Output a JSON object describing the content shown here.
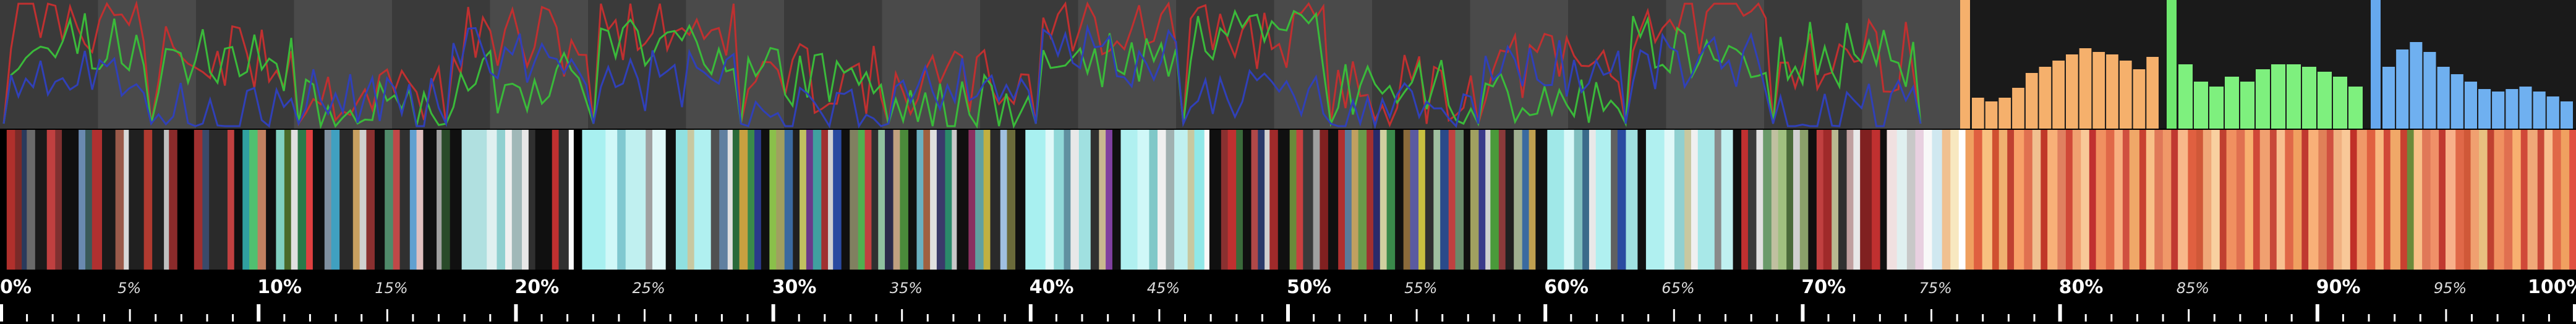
{
  "colors": {
    "band_dark": "#3a3a3a",
    "band_light": "#4a4a4a",
    "hist_bg": "#1a1a1a",
    "red": "#c03030",
    "green": "#3aba3a",
    "blue": "#3040b8",
    "hist_orange": "#f5b06c",
    "hist_green": "#7ef07e",
    "hist_blue": "#6fb0f0",
    "orange_bar": "#f5b06c",
    "green_bar": "#6fe86f",
    "blue_bar": "#66a8ee",
    "ruler_tick": "#ffffff"
  },
  "histograms": {
    "orange": [
      0.25,
      0.22,
      0.25,
      0.33,
      0.45,
      0.5,
      0.55,
      0.6,
      0.65,
      0.62,
      0.6,
      0.55,
      0.48,
      0.58
    ],
    "green": [
      0.52,
      0.38,
      0.34,
      0.42,
      0.38,
      0.48,
      0.52,
      0.52,
      0.5,
      0.46,
      0.42,
      0.34
    ],
    "blue": [
      0.5,
      0.64,
      0.7,
      0.62,
      0.5,
      0.44,
      0.38,
      0.32,
      0.3,
      0.32,
      0.34,
      0.3,
      0.26,
      0.22
    ]
  },
  "ruler": {
    "major": [
      "0%",
      "10%",
      "20%",
      "30%",
      "40%",
      "50%",
      "60%",
      "70%",
      "80%",
      "90%",
      "100%"
    ],
    "minor": [
      "5%",
      "15%",
      "25%",
      "35%",
      "45%",
      "55%",
      "65%",
      "75%",
      "85%",
      "95%"
    ]
  },
  "strip_segments": [
    {
      "color": "#000000",
      "w": 8
    },
    {
      "color": "#b0302c",
      "w": 10
    },
    {
      "color": "#7a2a28",
      "w": 8
    },
    {
      "color": "#2a3a5c",
      "w": 6
    },
    {
      "color": "#6a6a6a",
      "w": 10
    },
    {
      "color": "#1a1a1a",
      "w": 14
    },
    {
      "color": "#c04040",
      "w": 10
    },
    {
      "color": "#803030",
      "w": 8
    },
    {
      "color": "#101010",
      "w": 20
    },
    {
      "color": "#6a8ab0",
      "w": 8
    },
    {
      "color": "#3a5a5a",
      "w": 8
    },
    {
      "color": "#b03030",
      "w": 12
    },
    {
      "color": "#1a1a1a",
      "w": 16
    },
    {
      "color": "#9a5a4a",
      "w": 10
    },
    {
      "color": "#d8d8d8",
      "w": 6
    },
    {
      "color": "#202020",
      "w": 18
    },
    {
      "color": "#b03a30",
      "w": 10
    },
    {
      "color": "#202020",
      "w": 14
    },
    {
      "color": "#c0c0c0",
      "w": 6
    },
    {
      "color": "#8a2a2a",
      "w": 10
    },
    {
      "color": "#000000",
      "w": 20
    },
    {
      "color": "#a03030",
      "w": 10
    },
    {
      "color": "#3a4a6a",
      "w": 8
    },
    {
      "color": "#2a2a2a",
      "w": 22
    },
    {
      "color": "#c04040",
      "w": 8
    },
    {
      "color": "#101010",
      "w": 10
    },
    {
      "color": "#30a0a0",
      "w": 8
    },
    {
      "color": "#50c070",
      "w": 10
    },
    {
      "color": "#c08060",
      "w": 10
    },
    {
      "color": "#101010",
      "w": 12
    },
    {
      "color": "#80d0c0",
      "w": 10
    },
    {
      "color": "#4a6a2a",
      "w": 8
    },
    {
      "color": "#e0e0e0",
      "w": 8
    },
    {
      "color": "#2a7a4a",
      "w": 10
    },
    {
      "color": "#e04040",
      "w": 8
    },
    {
      "color": "#101010",
      "w": 14
    },
    {
      "color": "#8090a0",
      "w": 8
    },
    {
      "color": "#40a0c0",
      "w": 10
    },
    {
      "color": "#2a2a2a",
      "w": 16
    },
    {
      "color": "#c8a060",
      "w": 8
    },
    {
      "color": "#d0d0d0",
      "w": 8
    },
    {
      "color": "#8a3030",
      "w": 10
    },
    {
      "color": "#101010",
      "w": 12
    },
    {
      "color": "#508a6a",
      "w": 10
    },
    {
      "color": "#c04848",
      "w": 8
    },
    {
      "color": "#303030",
      "w": 12
    },
    {
      "color": "#60a0d0",
      "w": 8
    },
    {
      "color": "#e0c0c0",
      "w": 8
    },
    {
      "color": "#101010",
      "w": 16
    },
    {
      "color": "#a0a0a0",
      "w": 6
    },
    {
      "color": "#2a4a2a",
      "w": 10
    },
    {
      "color": "#101010",
      "w": 14
    },
    {
      "color": "#b0e0e0",
      "w": 30
    },
    {
      "color": "#e0f0f0",
      "w": 12
    },
    {
      "color": "#90d0d0",
      "w": 10
    },
    {
      "color": "#f0f0f0",
      "w": 8
    },
    {
      "color": "#a0b8b8",
      "w": 12
    },
    {
      "color": "#e8e8e8",
      "w": 8
    },
    {
      "color": "#303030",
      "w": 8
    },
    {
      "color": "#101010",
      "w": 20
    },
    {
      "color": "#c03030",
      "w": 8
    },
    {
      "color": "#303030",
      "w": 12
    },
    {
      "color": "#fafafa",
      "w": 6
    },
    {
      "color": "#000000",
      "w": 10
    },
    {
      "color": "#a8f0f0",
      "w": 28
    },
    {
      "color": "#d0f8f8",
      "w": 14
    },
    {
      "color": "#80c8d0",
      "w": 10
    },
    {
      "color": "#c0f0f0",
      "w": 24
    },
    {
      "color": "#a0a0a0",
      "w": 8
    },
    {
      "color": "#e0f8f8",
      "w": 16
    },
    {
      "color": "#101010",
      "w": 12
    },
    {
      "color": "#90e0e0",
      "w": 14
    },
    {
      "color": "#c8c8a0",
      "w": 8
    },
    {
      "color": "#b0f0f0",
      "w": 20
    },
    {
      "color": "#505050",
      "w": 10
    },
    {
      "color": "#6080a0",
      "w": 10
    },
    {
      "color": "#e0e0e0",
      "w": 6
    },
    {
      "color": "#2a6a3a",
      "w": 8
    },
    {
      "color": "#c8a040",
      "w": 10
    },
    {
      "color": "#3a8a4a",
      "w": 8
    },
    {
      "color": "#2a3a8a",
      "w": 8
    },
    {
      "color": "#101010",
      "w": 10
    },
    {
      "color": "#8ac04a",
      "w": 8
    },
    {
      "color": "#a0a060",
      "w": 10
    },
    {
      "color": "#3a6aa0",
      "w": 10
    },
    {
      "color": "#202020",
      "w": 8
    },
    {
      "color": "#c0c060",
      "w": 8
    },
    {
      "color": "#6a3a8a",
      "w": 8
    },
    {
      "color": "#40a0a0",
      "w": 10
    },
    {
      "color": "#a03030",
      "w": 8
    },
    {
      "color": "#d0d0d0",
      "w": 6
    },
    {
      "color": "#2a4aa0",
      "w": 10
    },
    {
      "color": "#101010",
      "w": 10
    },
    {
      "color": "#808060",
      "w": 10
    },
    {
      "color": "#50b050",
      "w": 8
    },
    {
      "color": "#c04040",
      "w": 8
    },
    {
      "color": "#303030",
      "w": 8
    },
    {
      "color": "#90c0a0",
      "w": 8
    },
    {
      "color": "#2a2a4a",
      "w": 10
    },
    {
      "color": "#c0a080",
      "w": 8
    },
    {
      "color": "#4a8a3a",
      "w": 10
    },
    {
      "color": "#101010",
      "w": 10
    },
    {
      "color": "#6ab0c0",
      "w": 8
    },
    {
      "color": "#a06040",
      "w": 8
    },
    {
      "color": "#e0e0e0",
      "w": 8
    },
    {
      "color": "#3a3a6a",
      "w": 10
    },
    {
      "color": "#2a8a6a",
      "w": 8
    },
    {
      "color": "#c8c8c8",
      "w": 6
    },
    {
      "color": "#101010",
      "w": 14
    },
    {
      "color": "#8a3060",
      "w": 8
    },
    {
      "color": "#60a0a0",
      "w": 10
    },
    {
      "color": "#c0b040",
      "w": 8
    },
    {
      "color": "#2a2a2a",
      "w": 12
    },
    {
      "color": "#a0c0e0",
      "w": 8
    },
    {
      "color": "#6a6a3a",
      "w": 10
    },
    {
      "color": "#101010",
      "w": 12
    },
    {
      "color": "#a8f0f0",
      "w": 24
    },
    {
      "color": "#e0f8f8",
      "w": 10
    },
    {
      "color": "#90d8d8",
      "w": 12
    },
    {
      "color": "#6090a0",
      "w": 8
    },
    {
      "color": "#e8e8e8",
      "w": 10
    },
    {
      "color": "#a0e0e0",
      "w": 14
    },
    {
      "color": "#303030",
      "w": 10
    },
    {
      "color": "#c8b890",
      "w": 8
    },
    {
      "color": "#8040a0",
      "w": 8
    },
    {
      "color": "#101010",
      "w": 10
    },
    {
      "color": "#b0f0f0",
      "w": 20
    },
    {
      "color": "#d0f8f8",
      "w": 14
    },
    {
      "color": "#80c8c8",
      "w": 10
    },
    {
      "color": "#f0f0f0",
      "w": 10
    },
    {
      "color": "#a0b0b0",
      "w": 10
    },
    {
      "color": "#c0f0f0",
      "w": 16
    },
    {
      "color": "#c8c8a0",
      "w": 8
    },
    {
      "color": "#90e8e8",
      "w": 12
    },
    {
      "color": "#f8f8f8",
      "w": 6
    },
    {
      "color": "#101010",
      "w": 14
    },
    {
      "color": "#8a3030",
      "w": 8
    },
    {
      "color": "#c03030",
      "w": 10
    },
    {
      "color": "#3a6a3a",
      "w": 8
    },
    {
      "color": "#101010",
      "w": 10
    },
    {
      "color": "#b04848",
      "w": 8
    },
    {
      "color": "#2a3a6a",
      "w": 8
    },
    {
      "color": "#d0d0d0",
      "w": 6
    },
    {
      "color": "#a02a2a",
      "w": 10
    },
    {
      "color": "#101010",
      "w": 14
    },
    {
      "color": "#6a8a3a",
      "w": 8
    },
    {
      "color": "#c84040",
      "w": 8
    },
    {
      "color": "#3a3a3a",
      "w": 12
    },
    {
      "color": "#a0a0a0",
      "w": 8
    },
    {
      "color": "#802020",
      "w": 10
    },
    {
      "color": "#101010",
      "w": 12
    },
    {
      "color": "#b03030",
      "w": 8
    },
    {
      "color": "#5a7a9a",
      "w": 8
    },
    {
      "color": "#c0a060",
      "w": 8
    },
    {
      "color": "#6a9a4a",
      "w": 10
    },
    {
      "color": "#a03030",
      "w": 8
    },
    {
      "color": "#2a2a6a",
      "w": 8
    },
    {
      "color": "#d0d0a0",
      "w": 8
    },
    {
      "color": "#3a8a4a",
      "w": 10
    },
    {
      "color": "#101010",
      "w": 10
    },
    {
      "color": "#8a6a3a",
      "w": 8
    },
    {
      "color": "#5a5aa0",
      "w": 10
    },
    {
      "color": "#c8c040",
      "w": 8
    },
    {
      "color": "#303030",
      "w": 10
    },
    {
      "color": "#a0c0a0",
      "w": 8
    },
    {
      "color": "#2a4a8a",
      "w": 10
    },
    {
      "color": "#c04040",
      "w": 8
    },
    {
      "color": "#6a8a6a",
      "w": 10
    },
    {
      "color": "#101010",
      "w": 8
    },
    {
      "color": "#a0a060",
      "w": 10
    },
    {
      "color": "#3a3a8a",
      "w": 8
    },
    {
      "color": "#d0d0d0",
      "w": 6
    },
    {
      "color": "#4a9a3a",
      "w": 10
    },
    {
      "color": "#8a3a3a",
      "w": 8
    },
    {
      "color": "#202020",
      "w": 10
    },
    {
      "color": "#a0b090",
      "w": 10
    },
    {
      "color": "#3a6aa0",
      "w": 8
    },
    {
      "color": "#c0a050",
      "w": 8
    },
    {
      "color": "#101010",
      "w": 14
    },
    {
      "color": "#a0e8e8",
      "w": 20
    },
    {
      "color": "#d8f8f8",
      "w": 12
    },
    {
      "color": "#80c0c0",
      "w": 10
    },
    {
      "color": "#3a6a8a",
      "w": 8
    },
    {
      "color": "#e8e8e8",
      "w": 8
    },
    {
      "color": "#b0f0f0",
      "w": 18
    },
    {
      "color": "#606060",
      "w": 8
    },
    {
      "color": "#2a4aa0",
      "w": 10
    },
    {
      "color": "#a0e0e0",
      "w": 14
    },
    {
      "color": "#101010",
      "w": 10
    },
    {
      "color": "#b0f0f0",
      "w": 22
    },
    {
      "color": "#e0f8f8",
      "w": 12
    },
    {
      "color": "#90d0d0",
      "w": 12
    },
    {
      "color": "#c8c8a0",
      "w": 8
    },
    {
      "color": "#f0f0f0",
      "w": 8
    },
    {
      "color": "#a8e8e8",
      "w": 20
    },
    {
      "color": "#8a8a8a",
      "w": 8
    },
    {
      "color": "#c0f0f0",
      "w": 14
    },
    {
      "color": "#101010",
      "w": 10
    },
    {
      "color": "#c03030",
      "w": 8
    },
    {
      "color": "#3a3a3a",
      "w": 10
    },
    {
      "color": "#e0e0e0",
      "w": 8
    },
    {
      "color": "#6a9a6a",
      "w": 10
    },
    {
      "color": "#c0c0a0",
      "w": 8
    },
    {
      "color": "#a0c080",
      "w": 10
    },
    {
      "color": "#4a6a3a",
      "w": 8
    },
    {
      "color": "#d0d0d0",
      "w": 8
    },
    {
      "color": "#8aa06a",
      "w": 10
    },
    {
      "color": "#101010",
      "w": 10
    },
    {
      "color": "#c04040",
      "w": 8
    },
    {
      "color": "#a02a2a",
      "w": 10
    },
    {
      "color": "#b8b890",
      "w": 8
    },
    {
      "color": "#303030",
      "w": 10
    },
    {
      "color": "#c0a0a0",
      "w": 8
    },
    {
      "color": "#e8e8e8",
      "w": 8
    },
    {
      "color": "#802020",
      "w": 14
    },
    {
      "color": "#c03030",
      "w": 10
    },
    {
      "color": "#101010",
      "w": 8
    },
    {
      "color": "#f0e0e0",
      "w": 12
    },
    {
      "color": "#e0f0f0",
      "w": 12
    },
    {
      "color": "#c8c8c8",
      "w": 10
    },
    {
      "color": "#e8d0e0",
      "w": 10
    },
    {
      "color": "#f8f8f8",
      "w": 10
    },
    {
      "color": "#d0e8f0",
      "w": 12
    },
    {
      "color": "#f0c090",
      "w": 10
    },
    {
      "color": "#f8e8c0",
      "w": 10
    },
    {
      "color": "#ffffff",
      "w": 8
    },
    {
      "color": "#f0a060",
      "w": 10
    },
    {
      "color": "#e06040",
      "w": 10
    },
    {
      "color": "#f8c080",
      "w": 12
    },
    {
      "color": "#d05030",
      "w": 8
    },
    {
      "color": "#f0b070",
      "w": 10
    },
    {
      "color": "#c04030",
      "w": 8
    },
    {
      "color": "#f8a068",
      "w": 12
    },
    {
      "color": "#e07050",
      "w": 10
    },
    {
      "color": "#f0c090",
      "w": 10
    },
    {
      "color": "#c03828",
      "w": 8
    },
    {
      "color": "#f8b078",
      "w": 12
    },
    {
      "color": "#e08060",
      "w": 10
    },
    {
      "color": "#d04838",
      "w": 8
    },
    {
      "color": "#f0a070",
      "w": 10
    },
    {
      "color": "#f8c898",
      "w": 10
    },
    {
      "color": "#c03030",
      "w": 8
    },
    {
      "color": "#f09060",
      "w": 12
    },
    {
      "color": "#e06848",
      "w": 10
    },
    {
      "color": "#f8b080",
      "w": 10
    },
    {
      "color": "#d05040",
      "w": 8
    },
    {
      "color": "#f0a868",
      "w": 12
    },
    {
      "color": "#c84030",
      "w": 8
    },
    {
      "color": "#f8c088",
      "w": 10
    },
    {
      "color": "#e07858",
      "w": 10
    },
    {
      "color": "#f09868",
      "w": 10
    },
    {
      "color": "#c03830",
      "w": 8
    },
    {
      "color": "#f8b88a",
      "w": 12
    },
    {
      "color": "#e06040",
      "w": 10
    },
    {
      "color": "#d05838",
      "w": 8
    },
    {
      "color": "#f0a878",
      "w": 10
    },
    {
      "color": "#f8d0a0",
      "w": 10
    },
    {
      "color": "#c04030",
      "w": 8
    },
    {
      "color": "#f09060",
      "w": 12
    },
    {
      "color": "#e07050",
      "w": 10
    },
    {
      "color": "#f8b070",
      "w": 10
    },
    {
      "color": "#d04838",
      "w": 8
    },
    {
      "color": "#f0a070",
      "w": 12
    },
    {
      "color": "#c84838",
      "w": 8
    },
    {
      "color": "#f8c090",
      "w": 10
    },
    {
      "color": "#e06848",
      "w": 10
    },
    {
      "color": "#f0a060",
      "w": 10
    },
    {
      "color": "#c03830",
      "w": 8
    },
    {
      "color": "#f8b078",
      "w": 12
    },
    {
      "color": "#e08058",
      "w": 10
    },
    {
      "color": "#d05040",
      "w": 8
    },
    {
      "color": "#f0b080",
      "w": 10
    },
    {
      "color": "#f8c898",
      "w": 10
    },
    {
      "color": "#c03028",
      "w": 8
    },
    {
      "color": "#f09868",
      "w": 12
    },
    {
      "color": "#e06040",
      "w": 10
    },
    {
      "color": "#f8b880",
      "w": 10
    },
    {
      "color": "#d04838",
      "w": 8
    },
    {
      "color": "#f0a868",
      "w": 12
    },
    {
      "color": "#c84030",
      "w": 8
    },
    {
      "color": "#6a8a3a",
      "w": 8
    },
    {
      "color": "#f8c088",
      "w": 10
    },
    {
      "color": "#e07858",
      "w": 10
    },
    {
      "color": "#f09068",
      "w": 10
    },
    {
      "color": "#c03830",
      "w": 8
    },
    {
      "color": "#f8b08a",
      "w": 12
    },
    {
      "color": "#e06848",
      "w": 10
    },
    {
      "color": "#d05838",
      "w": 8
    },
    {
      "color": "#f0a070",
      "w": 10
    },
    {
      "color": "#e8c080",
      "w": 10
    },
    {
      "color": "#c04030",
      "w": 8
    },
    {
      "color": "#f09060",
      "w": 12
    },
    {
      "color": "#e07050",
      "w": 10
    },
    {
      "color": "#f8b070",
      "w": 10
    },
    {
      "color": "#d04838",
      "w": 8
    },
    {
      "color": "#f0a878",
      "w": 12
    },
    {
      "color": "#c84838",
      "w": 8
    },
    {
      "color": "#f8c090",
      "w": 10
    },
    {
      "color": "#e06848",
      "w": 10
    },
    {
      "color": "#f0a060",
      "w": 10
    },
    {
      "color": "#e05040",
      "w": 8
    }
  ]
}
